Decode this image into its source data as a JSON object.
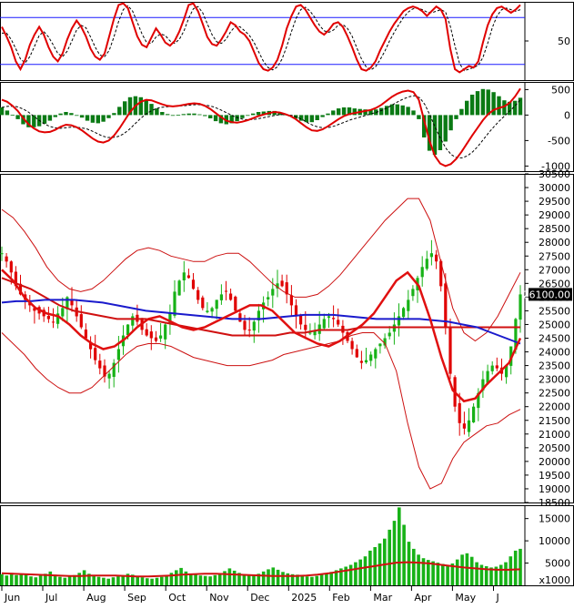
{
  "chart_data": {
    "type": "line",
    "title": "",
    "months": [
      "Jun",
      "Jul",
      "Aug",
      "Sep",
      "Oct",
      "Nov",
      "Dec",
      "2025",
      "Feb",
      "Mar",
      "Apr",
      "May",
      "J"
    ],
    "price_panel": {
      "ylim": [
        18500,
        30500
      ],
      "ticks": [
        18500,
        19000,
        19500,
        20000,
        20500,
        21000,
        21500,
        22000,
        22500,
        23000,
        23500,
        24000,
        24500,
        25000,
        25500,
        26000,
        26500,
        27000,
        27500,
        28000,
        28500,
        29000,
        29500,
        30000,
        30500
      ],
      "last_price_label": "26100.00",
      "close": [
        27600,
        27300,
        26900,
        26400,
        26100,
        25900,
        25700,
        25500,
        25400,
        25300,
        25200,
        25100,
        25400,
        25600,
        26000,
        25700,
        25300,
        24900,
        24500,
        24100,
        23700,
        23400,
        23100,
        23200,
        23600,
        24100,
        24600,
        25000,
        25300,
        25100,
        24800,
        24600,
        24500,
        24400,
        24600,
        25000,
        25400,
        26200,
        26600,
        26900,
        26700,
        26300,
        25900,
        25600,
        25500,
        25600,
        25900,
        26100,
        26200,
        25900,
        25500,
        25100,
        24800,
        24800,
        25100,
        25500,
        25800,
        26000,
        26300,
        26500,
        26400,
        26100,
        25700,
        25300,
        25000,
        24800,
        24700,
        24800,
        25000,
        25200,
        25300,
        25200,
        25000,
        24700,
        24400,
        24100,
        23800,
        23600,
        23700,
        23900,
        24100,
        24300,
        24500,
        24700,
        25000,
        25300,
        25600,
        25900,
        26300,
        26700,
        27100,
        27400,
        27600,
        27300,
        26400,
        24900,
        23200,
        22000,
        21400,
        21200,
        21500,
        22000,
        22500,
        23000,
        23300,
        23500,
        23400,
        23200,
        23500,
        24200,
        25200,
        26100
      ],
      "ma_red": [
        26700,
        26500,
        26300,
        26000,
        25700,
        25500,
        25400,
        25300,
        25200,
        25200,
        25200,
        25100,
        25000,
        24900,
        24800,
        24700,
        24600,
        24600,
        24600,
        24600,
        24700,
        24700,
        24800,
        24800,
        24800,
        24900,
        24900,
        24900,
        24900,
        24900,
        24900,
        24900,
        24900,
        24900,
        24900,
        24900,
        24900
      ],
      "ma_blue": [
        25800,
        25850,
        25850,
        25900,
        25900,
        25900,
        25850,
        25800,
        25700,
        25600,
        25500,
        25450,
        25400,
        25350,
        25300,
        25250,
        25200,
        25200,
        25200,
        25250,
        25300,
        25350,
        25350,
        25350,
        25300,
        25250,
        25200,
        25200,
        25200,
        25200,
        25150,
        25100,
        25000,
        24900,
        24700,
        24500,
        24300
      ],
      "ma_fast": [
        27000,
        26600,
        26000,
        25600,
        25400,
        25300,
        25000,
        24600,
        24300,
        24100,
        24200,
        24500,
        24900,
        25200,
        25300,
        25100,
        24900,
        24800,
        24900,
        25100,
        25300,
        25500,
        25700,
        25700,
        25500,
        25100,
        24700,
        24500,
        24300,
        24200,
        24400,
        24700,
        25000,
        25400,
        26000,
        26600,
        26900,
        26400,
        25200,
        23800,
        22600,
        22200,
        22300,
        22800,
        23200,
        23600,
        24500
      ],
      "bb_upper": [
        29200,
        28900,
        28400,
        27800,
        27100,
        26600,
        26300,
        26200,
        26300,
        26600,
        27000,
        27400,
        27700,
        27800,
        27700,
        27500,
        27400,
        27300,
        27300,
        27500,
        27600,
        27600,
        27300,
        26900,
        26500,
        26200,
        26000,
        26000,
        26100,
        26400,
        26800,
        27300,
        27800,
        28300,
        28800,
        29200,
        29600,
        29600,
        28800,
        27200,
        25600,
        24700,
        24400,
        24700,
        25300,
        26100,
        26900
      ],
      "bb_lower": [
        24700,
        24300,
        23900,
        23400,
        23000,
        22700,
        22500,
        22500,
        22700,
        23100,
        23500,
        23900,
        24200,
        24300,
        24300,
        24200,
        24000,
        23800,
        23700,
        23600,
        23500,
        23500,
        23500,
        23600,
        23700,
        23900,
        24000,
        24100,
        24200,
        24300,
        24400,
        24600,
        24700,
        24700,
        24300,
        23300,
        21400,
        19800,
        19000,
        19200,
        20100,
        20700,
        21000,
        21300,
        21400,
        21700,
        21900
      ]
    },
    "volume_panel": {
      "unit_label": "x1000",
      "ylim": [
        0,
        18000
      ],
      "ticks": [
        5000,
        10000,
        15000
      ],
      "volume": [
        2500,
        2200,
        2800,
        2300,
        2600,
        2400,
        2000,
        1800,
        2200,
        2600,
        3100,
        2400,
        1900,
        1700,
        2100,
        2300,
        2800,
        3400,
        2600,
        2200,
        1900,
        1700,
        1500,
        1800,
        2000,
        2300,
        2600,
        2400,
        2100,
        1800,
        1600,
        1500,
        1700,
        1900,
        2300,
        2800,
        3400,
        3900,
        3100,
        2600,
        2400,
        2200,
        2100,
        2000,
        2300,
        2700,
        3200,
        3800,
        3300,
        2800,
        2500,
        2400,
        2300,
        2600,
        3100,
        3600,
        4000,
        3500,
        3000,
        2700,
        2500,
        2400,
        2200,
        2000,
        1900,
        2100,
        2400,
        2700,
        3000,
        3400,
        3800,
        4200,
        4600,
        5200,
        5800,
        6500,
        7800,
        8600,
        9400,
        10500,
        12500,
        14500,
        17500,
        13600,
        9800,
        8200,
        6900,
        6100,
        5700,
        5400,
        5100,
        4800,
        4600,
        4900,
        5800,
        6900,
        7200,
        6400,
        5200,
        4600,
        4300,
        4000,
        4200,
        4600,
        5200,
        6500,
        7800,
        8200
      ],
      "vol_ma": [
        2700,
        2600,
        2500,
        2400,
        2300,
        2200,
        2100,
        2100,
        2200,
        2200,
        2200,
        2100,
        2000,
        2000,
        2100,
        2200,
        2400,
        2500,
        2600,
        2600,
        2500,
        2400,
        2300,
        2200,
        2100,
        2100,
        2100,
        2200,
        2400,
        2700,
        3100,
        3500,
        3900,
        4300,
        4700,
        5100,
        5200,
        5100,
        4900,
        4600,
        4300,
        4000,
        3800,
        3600,
        3500,
        3500,
        3600
      ]
    },
    "stoch_panel": {
      "ylim": [
        0,
        100
      ],
      "ticks": [
        50
      ],
      "upper_band": 80,
      "lower_band": 20,
      "k": [
        68,
        56,
        42,
        24,
        14,
        26,
        45,
        58,
        68,
        58,
        42,
        30,
        24,
        34,
        52,
        66,
        76,
        68,
        56,
        40,
        30,
        26,
        34,
        56,
        78,
        96,
        98,
        92,
        74,
        56,
        45,
        42,
        54,
        66,
        58,
        48,
        44,
        50,
        62,
        78,
        96,
        98,
        88,
        72,
        55,
        46,
        44,
        52,
        62,
        74,
        70,
        62,
        58,
        50,
        36,
        22,
        14,
        12,
        16,
        26,
        44,
        66,
        82,
        94,
        96,
        90,
        80,
        70,
        62,
        58,
        64,
        72,
        74,
        68,
        56,
        42,
        26,
        14,
        12,
        16,
        24,
        38,
        50,
        62,
        72,
        80,
        88,
        92,
        94,
        92,
        88,
        82,
        88,
        94,
        90,
        78,
        40,
        14,
        10,
        14,
        18,
        16,
        24,
        48,
        70,
        84,
        92,
        94,
        90,
        86,
        90,
        96
      ],
      "d": [
        60,
        60,
        52,
        40,
        27,
        22,
        30,
        43,
        57,
        62,
        55,
        45,
        34,
        30,
        37,
        50,
        64,
        70,
        67,
        55,
        42,
        32,
        30,
        38,
        55,
        75,
        90,
        95,
        88,
        74,
        59,
        48,
        47,
        55,
        59,
        57,
        50,
        47,
        52,
        63,
        79,
        91,
        94,
        86,
        72,
        58,
        49,
        47,
        52,
        62,
        69,
        68,
        63,
        57,
        48,
        36,
        24,
        16,
        13,
        17,
        27,
        43,
        62,
        79,
        90,
        93,
        88,
        80,
        70,
        63,
        61,
        64,
        70,
        71,
        66,
        56,
        41,
        27,
        17,
        13,
        17,
        26,
        37,
        50,
        61,
        71,
        80,
        87,
        91,
        92,
        90,
        87,
        86,
        88,
        90,
        87,
        69,
        44,
        21,
        12,
        14,
        16,
        19,
        29,
        47,
        67,
        82,
        90,
        92,
        90,
        88,
        90
      ]
    },
    "macd_panel": {
      "ylim": [
        -1100,
        650
      ],
      "ticks": [
        500,
        0,
        -500,
        -1000
      ],
      "macd": [
        300,
        260,
        180,
        80,
        -60,
        -180,
        -260,
        -320,
        -340,
        -330,
        -290,
        -230,
        -190,
        -200,
        -240,
        -300,
        -380,
        -460,
        -520,
        -540,
        -500,
        -400,
        -260,
        -100,
        60,
        180,
        260,
        300,
        290,
        250,
        210,
        180,
        170,
        180,
        200,
        220,
        230,
        220,
        180,
        120,
        40,
        -40,
        -110,
        -140,
        -150,
        -130,
        -100,
        -60,
        -20,
        10,
        40,
        60,
        50,
        20,
        -20,
        -80,
        -160,
        -240,
        -300,
        -310,
        -280,
        -220,
        -150,
        -80,
        -20,
        20,
        40,
        60,
        80,
        100,
        140,
        200,
        280,
        360,
        420,
        460,
        480,
        450,
        300,
        -100,
        -500,
        -800,
        -950,
        -1000,
        -960,
        -860,
        -720,
        -560,
        -400,
        -250,
        -100,
        20,
        100,
        140,
        170,
        240,
        360,
        520
      ],
      "signal": [
        150,
        170,
        175,
        160,
        120,
        60,
        -20,
        -100,
        -170,
        -220,
        -250,
        -260,
        -250,
        -240,
        -240,
        -250,
        -270,
        -310,
        -360,
        -410,
        -440,
        -440,
        -420,
        -370,
        -290,
        -190,
        -90,
        0,
        70,
        120,
        150,
        160,
        170,
        175,
        180,
        190,
        200,
        205,
        200,
        185,
        160,
        120,
        70,
        20,
        -30,
        -70,
        -90,
        -90,
        -80,
        -60,
        -40,
        -20,
        0,
        10,
        5,
        -10,
        -50,
        -100,
        -160,
        -210,
        -240,
        -250,
        -240,
        -210,
        -170,
        -130,
        -90,
        -60,
        -30,
        0,
        30,
        60,
        100,
        150,
        210,
        270,
        320,
        360,
        380,
        340,
        200,
        -20,
        -260,
        -480,
        -660,
        -780,
        -840,
        -840,
        -800,
        -720,
        -610,
        -480,
        -350,
        -230,
        -120,
        -20,
        80,
        180,
        300
      ]
    }
  }
}
